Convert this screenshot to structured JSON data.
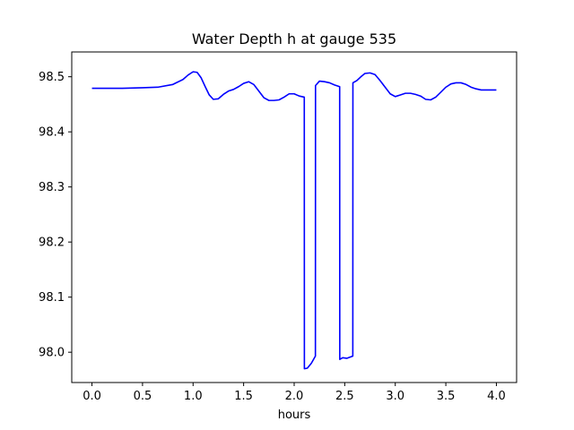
{
  "chart_data": {
    "type": "line",
    "title": "Water Depth h at gauge 535",
    "xlabel": "hours",
    "ylabel": "",
    "xlim": [
      -0.2,
      4.2
    ],
    "ylim": [
      97.945,
      98.545
    ],
    "xticks": [
      0.0,
      0.5,
      1.0,
      1.5,
      2.0,
      2.5,
      3.0,
      3.5,
      4.0
    ],
    "xtick_labels": [
      "0.0",
      "0.5",
      "1.0",
      "1.5",
      "2.0",
      "2.5",
      "3.0",
      "3.5",
      "4.0"
    ],
    "yticks": [
      98.0,
      98.1,
      98.2,
      98.3,
      98.4,
      98.5
    ],
    "ytick_labels": [
      "98.0",
      "98.1",
      "98.2",
      "98.3",
      "98.4",
      "98.5"
    ],
    "grid": false,
    "legend": "none",
    "series": [
      {
        "color": "#0000ff",
        "x": [
          0.0,
          0.3,
          0.5,
          0.65,
          0.8,
          0.9,
          0.95,
          1.0,
          1.04,
          1.08,
          1.12,
          1.16,
          1.2,
          1.25,
          1.3,
          1.35,
          1.4,
          1.45,
          1.5,
          1.55,
          1.6,
          1.65,
          1.7,
          1.75,
          1.8,
          1.85,
          1.9,
          1.95,
          2.0,
          2.05,
          2.1,
          2.101,
          2.13,
          2.17,
          2.21,
          2.211,
          2.25,
          2.3,
          2.35,
          2.4,
          2.45,
          2.451,
          2.48,
          2.52,
          2.58,
          2.581,
          2.62,
          2.66,
          2.7,
          2.75,
          2.8,
          2.85,
          2.9,
          2.95,
          3.0,
          3.05,
          3.1,
          3.15,
          3.2,
          3.25,
          3.3,
          3.35,
          3.4,
          3.45,
          3.5,
          3.55,
          3.6,
          3.65,
          3.7,
          3.75,
          3.8,
          3.85,
          3.9,
          3.95,
          4.0
        ],
        "y": [
          98.479,
          98.479,
          98.48,
          98.481,
          98.486,
          98.495,
          98.503,
          98.509,
          98.508,
          98.498,
          98.482,
          98.467,
          98.459,
          98.46,
          98.468,
          98.474,
          98.477,
          98.482,
          98.488,
          98.491,
          98.486,
          98.474,
          98.462,
          98.457,
          98.457,
          98.458,
          98.463,
          98.469,
          98.469,
          98.465,
          98.463,
          97.97,
          97.971,
          97.98,
          97.993,
          98.484,
          98.492,
          98.491,
          98.489,
          98.485,
          98.482,
          97.987,
          97.99,
          97.989,
          97.993,
          98.489,
          98.493,
          98.5,
          98.506,
          98.507,
          98.504,
          98.493,
          98.481,
          98.469,
          98.464,
          98.467,
          98.47,
          98.47,
          98.468,
          98.465,
          98.459,
          98.458,
          98.463,
          98.472,
          98.481,
          98.487,
          98.489,
          98.489,
          98.486,
          98.481,
          98.478,
          98.476,
          98.476,
          98.476,
          98.476
        ]
      }
    ]
  }
}
